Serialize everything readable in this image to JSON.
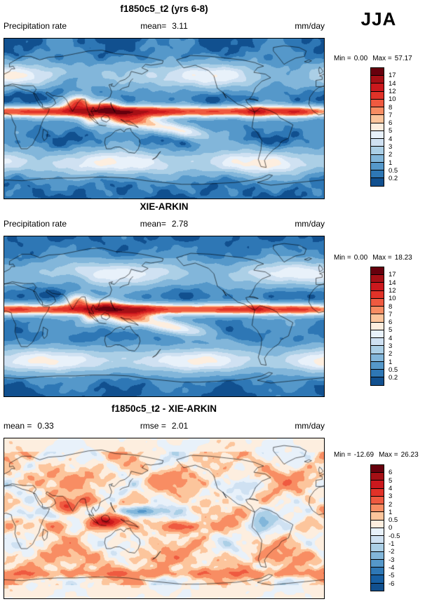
{
  "season": "JJA",
  "chart_data": {
    "type": "heatmap",
    "map_extent": "global, 0-360E, 90S-90N",
    "panels": [
      {
        "id": "model",
        "type": "map-heatmap",
        "title": "f1850c5_t2 (yrs 6-8)",
        "variable": "Precipitation rate",
        "mean_label": "mean=",
        "mean": "3.11",
        "units": "mm/day",
        "min_label": "Min =",
        "min": "0.00",
        "max_label": "Max =",
        "max": "57.17",
        "ticks": [
          "17",
          "14",
          "12",
          "10",
          "8",
          "7",
          "6",
          "5",
          "4",
          "3",
          "2",
          "1",
          "0.5",
          "0.2"
        ],
        "palette": [
          "#67000d",
          "#a50f15",
          "#cb181d",
          "#e13228",
          "#ef5a40",
          "#f88d63",
          "#fcc59c",
          "#fdeedf",
          "#e8f1fa",
          "#cfe1f2",
          "#abcfe6",
          "#82b6da",
          "#5598ca",
          "#2e77b5",
          "#11508f"
        ],
        "field": "model"
      },
      {
        "id": "obs",
        "type": "map-heatmap",
        "title": "XIE-ARKIN",
        "variable": "Precipitation rate",
        "mean_label": "mean=",
        "mean": "2.78",
        "units": "mm/day",
        "min_label": "Min =",
        "min": "0.00",
        "max_label": "Max =",
        "max": "18.23",
        "ticks": [
          "17",
          "14",
          "12",
          "10",
          "8",
          "7",
          "6",
          "5",
          "4",
          "3",
          "2",
          "1",
          "0.5",
          "0.2"
        ],
        "palette": [
          "#67000d",
          "#a50f15",
          "#cb181d",
          "#e13228",
          "#ef5a40",
          "#f88d63",
          "#fcc59c",
          "#fdeedf",
          "#e8f1fa",
          "#cfe1f2",
          "#abcfe6",
          "#82b6da",
          "#5598ca",
          "#2e77b5",
          "#11508f"
        ],
        "field": "obs"
      },
      {
        "id": "difference",
        "type": "map-heatmap",
        "title": "f1850c5_t2 - XIE-ARKIN",
        "mean_label": "mean =",
        "mean": "0.33",
        "rmse_label": "rmse =",
        "rmse": "2.01",
        "units": "mm/day",
        "min_label": "Min =",
        "min": "-12.69",
        "max_label": "Max =",
        "max": "26.23",
        "ticks": [
          "6",
          "5",
          "4",
          "3",
          "2",
          "1",
          "0.5",
          "0",
          "-0.5",
          "-1",
          "-2",
          "-3",
          "-4",
          "-5",
          "-6"
        ],
        "palette": [
          "#67000d",
          "#a50f15",
          "#cb181d",
          "#e13228",
          "#ef5a40",
          "#f88d63",
          "#fcc59c",
          "#fdeedf",
          "#e8f1fa",
          "#cfe1f2",
          "#abcfe6",
          "#82b6da",
          "#5598ca",
          "#2e77b5",
          "#175fa3",
          "#11508f"
        ],
        "field": "diff"
      }
    ]
  }
}
